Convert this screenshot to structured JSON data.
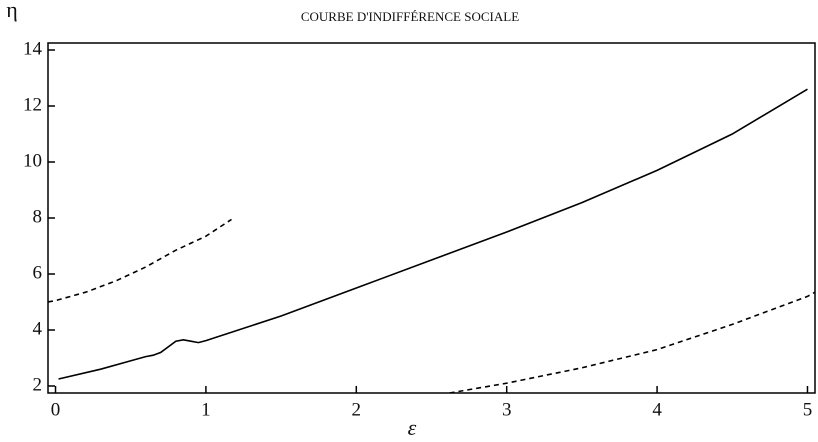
{
  "chart_data": {
    "type": "line",
    "title": "COURBE D'INDIFFÉRENCE SOCIALE",
    "x_label": "ε",
    "y_label": "η",
    "xlim": [
      -0.05,
      5.05
    ],
    "ylim": [
      1.75,
      14.25
    ],
    "xticks": [
      0,
      1,
      2,
      3,
      4,
      5
    ],
    "yticks": [
      2,
      4,
      6,
      8,
      10,
      12,
      14
    ],
    "series": [
      {
        "color": "#000000",
        "dashed": false,
        "x": [
          0.02,
          0.3,
          0.6,
          0.65,
          0.7,
          0.8,
          0.85,
          0.9,
          0.95,
          1.0,
          1.5,
          2.0,
          2.5,
          3.0,
          3.5,
          4.0,
          4.5,
          5.0
        ],
        "values": [
          2.25,
          2.6,
          3.05,
          3.1,
          3.2,
          3.6,
          3.65,
          3.6,
          3.55,
          3.62,
          4.5,
          5.5,
          6.5,
          7.5,
          8.55,
          9.7,
          11.0,
          12.6
        ]
      },
      {
        "color": "#000000",
        "dashed": true,
        "x": [
          -0.05,
          0.0,
          0.2,
          0.4,
          0.6,
          0.8,
          1.0,
          1.17
        ],
        "values": [
          5.0,
          5.05,
          5.35,
          5.75,
          6.25,
          6.85,
          7.35,
          7.95
        ]
      },
      {
        "color": "#000000",
        "dashed": true,
        "x": [
          2.62,
          3.0,
          3.5,
          4.0,
          4.5,
          5.0,
          5.05
        ],
        "values": [
          1.75,
          2.1,
          2.65,
          3.3,
          4.2,
          5.2,
          5.35
        ]
      }
    ]
  }
}
